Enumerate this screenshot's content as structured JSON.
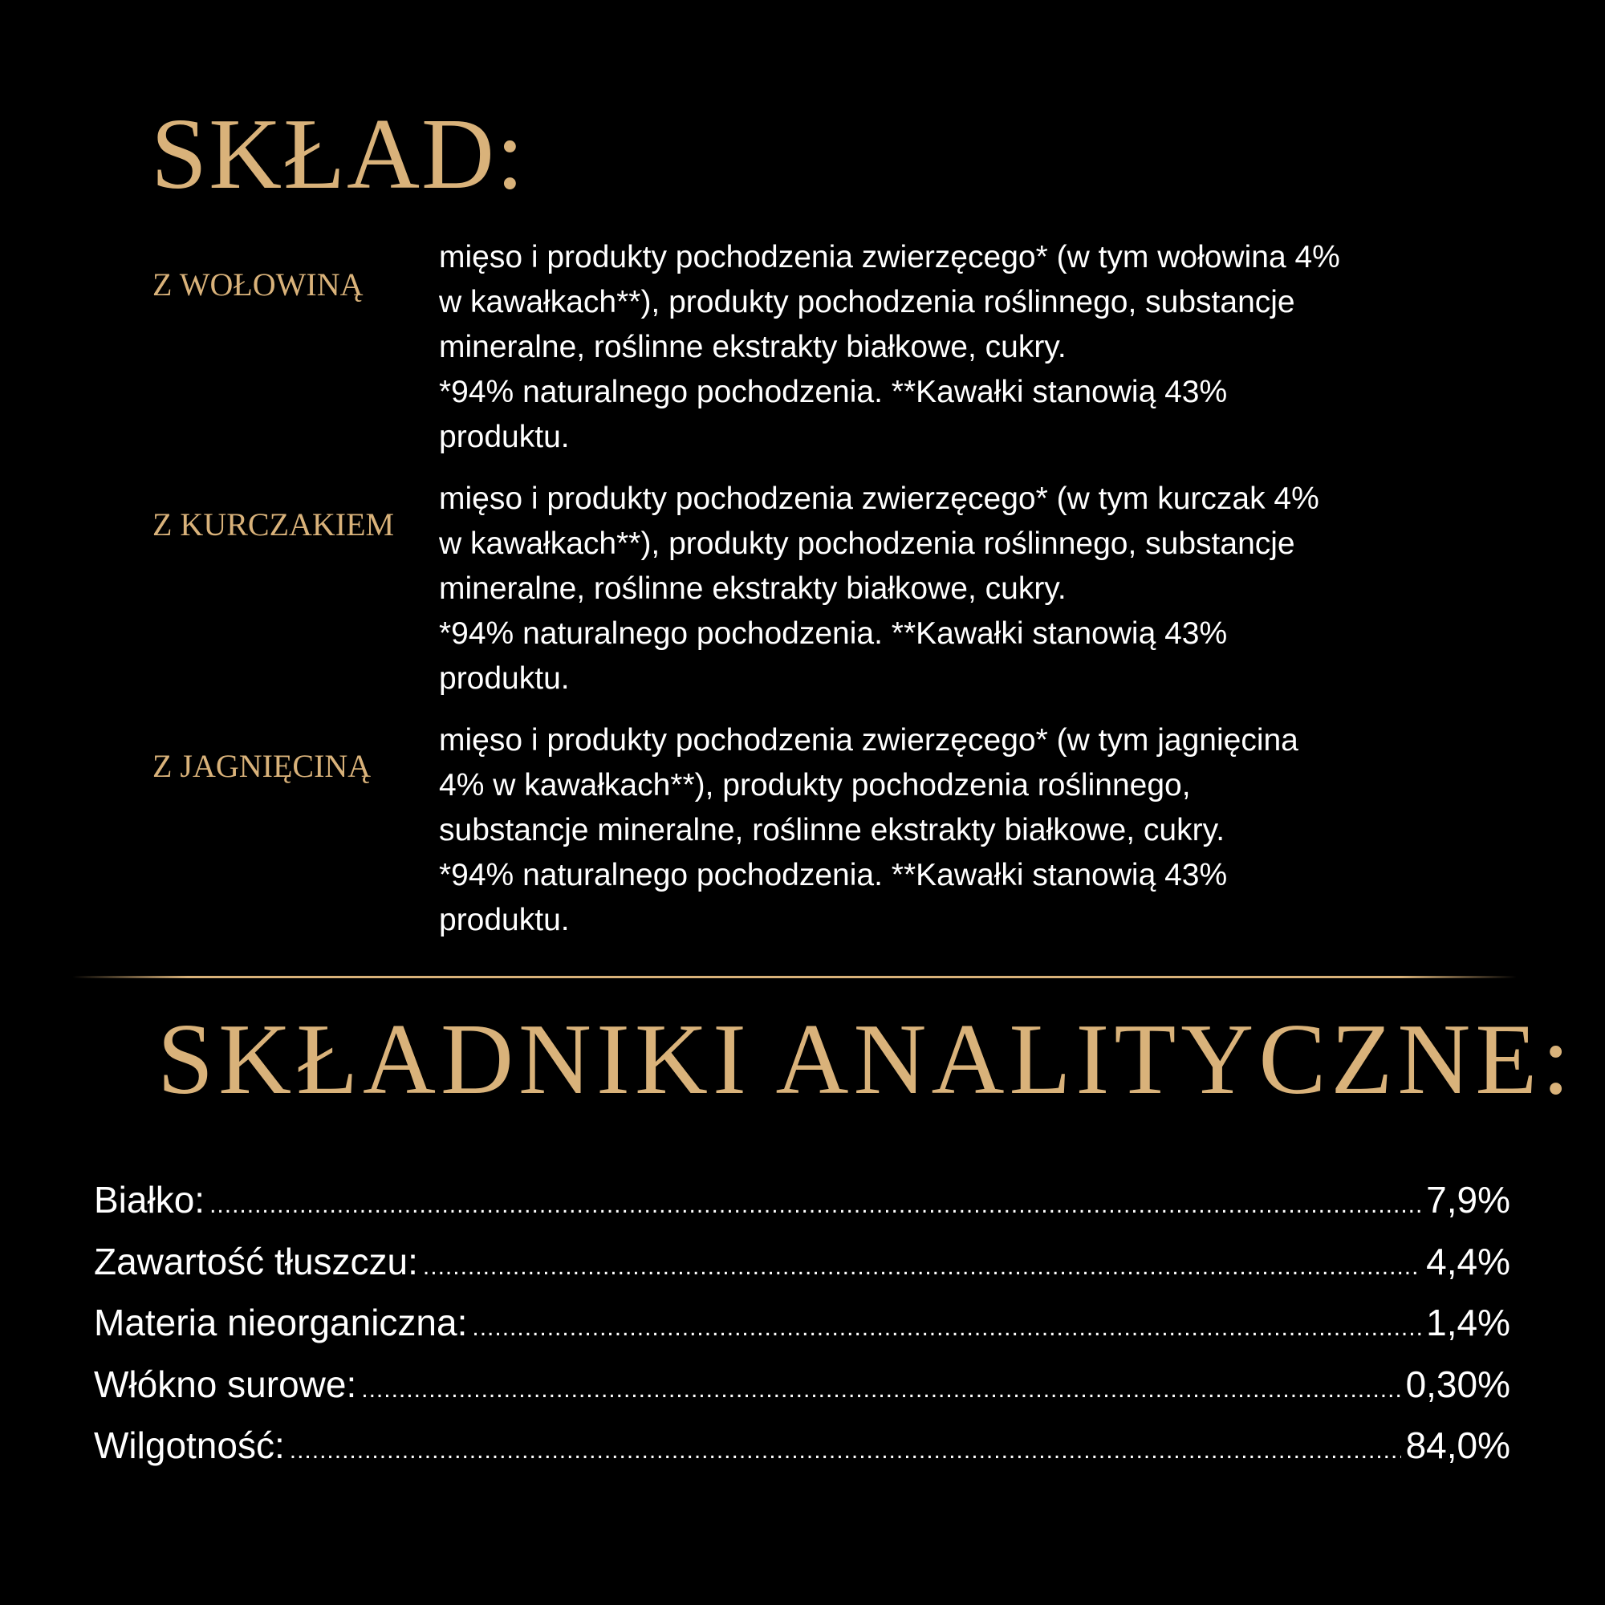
{
  "composition": {
    "title": "SKŁAD:",
    "variants": [
      {
        "label": "Z WOŁOWINĄ",
        "lines": [
          "mięso i produkty pochodzenia zwierzęcego* (w tym wołowina 4%",
          "w kawałkach**), produkty pochodzenia roślinnego, substancje",
          "mineralne, roślinne ekstrakty białkowe, cukry.",
          "*94% naturalnego pochodzenia. **Kawałki stanowią 43%",
          "produktu."
        ]
      },
      {
        "label": "Z KURCZAKIEM",
        "lines": [
          "mięso i produkty pochodzenia zwierzęcego* (w tym kurczak 4%",
          "w kawałkach**), produkty pochodzenia roślinnego, substancje",
          "mineralne, roślinne ekstrakty białkowe, cukry.",
          "*94% naturalnego pochodzenia. **Kawałki stanowią 43%",
          "produktu."
        ]
      },
      {
        "label": "Z JAGNIĘCINĄ",
        "lines": [
          "mięso i produkty pochodzenia zwierzęcego* (w tym jagnięcina",
          "4% w kawałkach**), produkty pochodzenia roślinnego,",
          "substancje mineralne, roślinne ekstrakty białkowe, cukry.",
          "*94% naturalnego pochodzenia. **Kawałki stanowią 43%",
          "produktu."
        ]
      }
    ]
  },
  "analytical": {
    "title": "SKŁADNIKI ANALITYCZNE:",
    "rows": [
      {
        "name": "Białko:",
        "value": "7,9%"
      },
      {
        "name": "Zawartość tłuszczu:",
        "value": "4,4%"
      },
      {
        "name": "Materia nieorganiczna:",
        "value": "1,4%"
      },
      {
        "name": "Włókno surowe:",
        "value": "0,30%"
      },
      {
        "name": "Wilgotność:",
        "value": "84,0%"
      }
    ]
  },
  "colors": {
    "accent": "#d9b27a",
    "background": "#000000",
    "text": "#ffffff"
  }
}
